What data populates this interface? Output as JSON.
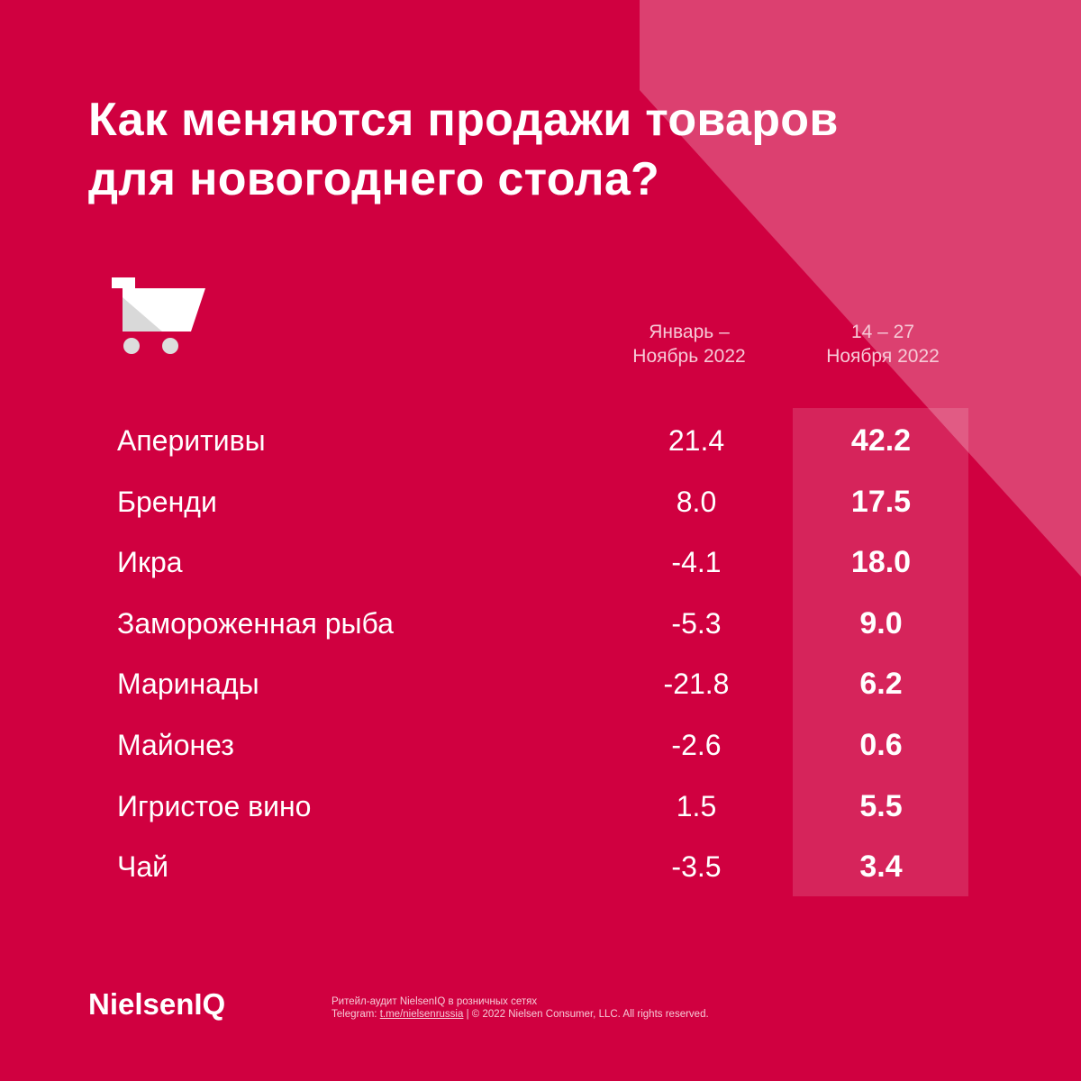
{
  "header": {
    "title": [
      "Как меняются продажи товаров",
      "для новогоднего стола?"
    ]
  },
  "table": {
    "columns": [
      [
        "Январь –",
        "Ноябрь 2022"
      ],
      [
        "14 – 27",
        "Ноября 2022"
      ]
    ],
    "rows": [
      [
        "Аперитивы",
        "21.4",
        "42.2"
      ],
      [
        "Бренди",
        "8.0",
        "17.5"
      ],
      [
        "Икра",
        "-4.1",
        "18.0"
      ],
      [
        "Замороженная рыба",
        "-5.3",
        "9.0"
      ],
      [
        "Маринады",
        "-21.8",
        "6.2"
      ],
      [
        "Майонез",
        "-2.6",
        "0.6"
      ],
      [
        "Игристое вино",
        "1.5",
        "5.5"
      ],
      [
        "Чай",
        "-3.5",
        "3.4"
      ]
    ]
  },
  "footer": {
    "brand": "NielsenIQ",
    "note": "Ритейл-аудит NielsenIQ в розничных сетях",
    "telegram_prefix": "Telegram:",
    "telegram_link": "t.me/nielsenrussia",
    "copyright": "|  © 2022 Nielsen Consumer, LLC. All rights reserved."
  }
}
